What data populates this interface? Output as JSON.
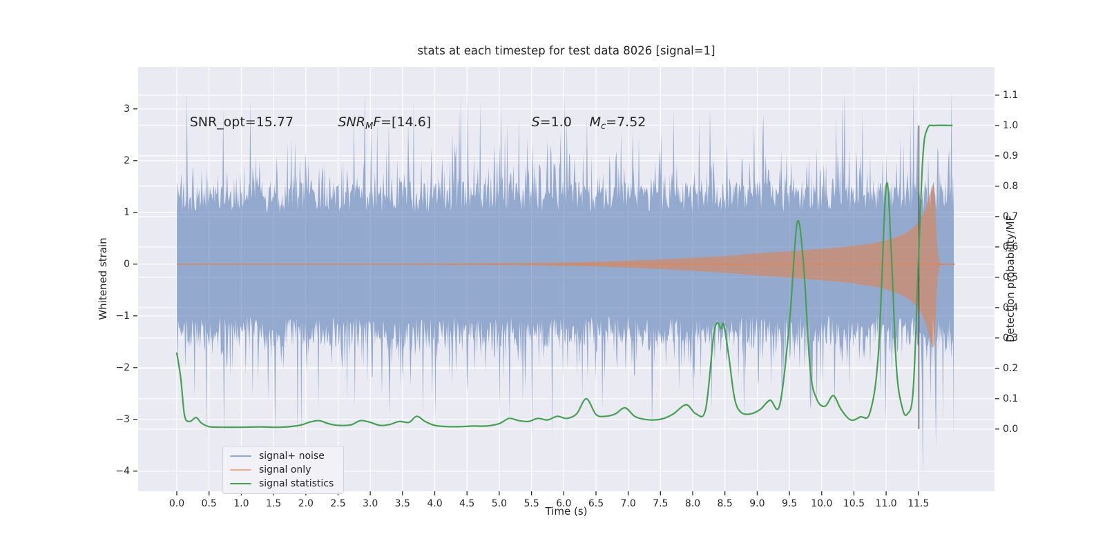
{
  "chart_data": {
    "type": "line",
    "title": "stats at each timestep for test data 8026 [signal=1]",
    "xlabel": "Time (s)",
    "ylabel_left": "Whitened strain",
    "ylabel_right": "Detection probability/MF",
    "xlim": [
      -0.6,
      12.68
    ],
    "ylim_left": [
      -4.39,
      3.81
    ],
    "ylim_right": [
      -0.205,
      1.193
    ],
    "grid": "on",
    "legend_position": "lower left",
    "style": {
      "plot_bg": "#EAEAF2",
      "grid_color": "#FFFFFF",
      "text_color": "#262626",
      "tick_color": "#262626"
    },
    "x_ticks": [
      {
        "v": 0,
        "label": "0.0"
      },
      {
        "v": 0.5,
        "label": "0.5"
      },
      {
        "v": 1,
        "label": "1.0"
      },
      {
        "v": 1.5,
        "label": "1.5"
      },
      {
        "v": 2,
        "label": "2.0"
      },
      {
        "v": 2.5,
        "label": "2.5"
      },
      {
        "v": 3,
        "label": "3.0"
      },
      {
        "v": 3.5,
        "label": "3.5"
      },
      {
        "v": 4,
        "label": "4.0"
      },
      {
        "v": 4.5,
        "label": "4.5"
      },
      {
        "v": 5,
        "label": "5.0"
      },
      {
        "v": 5.5,
        "label": "5.5"
      },
      {
        "v": 6,
        "label": "6.0"
      },
      {
        "v": 6.5,
        "label": "6.5"
      },
      {
        "v": 7,
        "label": "7.0"
      },
      {
        "v": 7.5,
        "label": "7.5"
      },
      {
        "v": 8,
        "label": "8.0"
      },
      {
        "v": 8.5,
        "label": "8.5"
      },
      {
        "v": 9,
        "label": "9.0"
      },
      {
        "v": 9.5,
        "label": "9.5"
      },
      {
        "v": 10,
        "label": "10.0"
      },
      {
        "v": 10.5,
        "label": "10.5"
      },
      {
        "v": 11,
        "label": "11.0"
      },
      {
        "v": 11.5,
        "label": "11.5"
      }
    ],
    "y_ticks_left": [
      {
        "v": 3,
        "label": "3"
      },
      {
        "v": 2,
        "label": "2"
      },
      {
        "v": 1,
        "label": "1"
      },
      {
        "v": 0,
        "label": "0"
      },
      {
        "v": -1,
        "label": "−1"
      },
      {
        "v": -2,
        "label": "−2"
      },
      {
        "v": -3,
        "label": "−3"
      },
      {
        "v": -4,
        "label": "−4"
      }
    ],
    "y_ticks_right": [
      {
        "v": 1.1,
        "label": "1.1"
      },
      {
        "v": 1.0,
        "label": "1.0"
      },
      {
        "v": 0.9,
        "label": "0.9"
      },
      {
        "v": 0.8,
        "label": "0.8"
      },
      {
        "v": 0.7,
        "label": "0.7"
      },
      {
        "v": 0.6,
        "label": "0.6"
      },
      {
        "v": 0.5,
        "label": "0.5"
      },
      {
        "v": 0.4,
        "label": "0.4"
      },
      {
        "v": 0.3,
        "label": "0.3"
      },
      {
        "v": 0.2,
        "label": "0.2"
      },
      {
        "v": 0.1,
        "label": "0.1"
      },
      {
        "v": 0.0,
        "label": "0.0"
      }
    ],
    "annotations": [
      {
        "x": 0.2,
        "y": 2.75,
        "segments": [
          {
            "text": "SNR_opt=15.77"
          }
        ]
      },
      {
        "x": 2.5,
        "y": 2.75,
        "segments": [
          {
            "text": "SNR",
            "italic": true
          },
          {
            "text": "M",
            "italic": true,
            "sub": true
          },
          {
            "text": "F",
            "italic": true
          },
          {
            "text": "=[14.6]"
          }
        ]
      },
      {
        "x": 5.5,
        "y": 2.75,
        "segments": [
          {
            "text": "S",
            "italic": true
          },
          {
            "text": "=1.0"
          }
        ]
      },
      {
        "x": 6.4,
        "y": 2.75,
        "segments": [
          {
            "text": "M",
            "italic": true
          },
          {
            "text": "c",
            "italic": true,
            "sub": true
          },
          {
            "text": "=7.52"
          }
        ]
      }
    ],
    "series": [
      {
        "name": "signal+ noise",
        "type": "noise_band",
        "axis": "left",
        "color": "#4C72B0",
        "opacity": 0.55,
        "noise": {
          "t_start": 0,
          "t_end": 12.06,
          "dt": 0.012,
          "core_min": 1.0,
          "core_var": 0.6,
          "spike_prob": 0.38,
          "spike_scale": 0.5,
          "spike_cap": 3.35,
          "seed": 8026
        },
        "spikes": [
          [
            0.72,
            3.0
          ],
          [
            1.14,
            3.17
          ],
          [
            2.75,
            2.92
          ],
          [
            4.7,
            3.17
          ],
          [
            5.3,
            2.86
          ],
          [
            6.05,
            2.85
          ],
          [
            7.7,
            2.97
          ],
          [
            9.1,
            2.9
          ],
          [
            10.32,
            3.22
          ],
          [
            11.42,
            3.52
          ],
          [
            2.2,
            -2.78
          ],
          [
            3.3,
            -2.92
          ],
          [
            5.0,
            -2.82
          ],
          [
            6.6,
            -2.78
          ],
          [
            8.0,
            -2.88
          ],
          [
            8.8,
            -2.97
          ],
          [
            10.2,
            -2.82
          ],
          [
            11.57,
            -4.12
          ],
          [
            11.77,
            -3.55
          ],
          [
            11.88,
            -3.0
          ]
        ]
      },
      {
        "name": "signal only",
        "type": "chirp_envelope",
        "axis": "left",
        "color": "#DD8452",
        "opacity": 0.6,
        "baseline": 0,
        "t_end": 12.07,
        "envelope": [
          [
            0,
            0.009
          ],
          [
            3,
            0.01
          ],
          [
            4.5,
            0.014
          ],
          [
            5.5,
            0.022
          ],
          [
            6.2,
            0.035
          ],
          [
            6.8,
            0.055
          ],
          [
            7.4,
            0.085
          ],
          [
            8.0,
            0.12
          ],
          [
            8.6,
            0.165
          ],
          [
            9.0,
            0.21
          ],
          [
            9.4,
            0.24
          ],
          [
            9.8,
            0.275
          ],
          [
            10.2,
            0.315
          ],
          [
            10.6,
            0.37
          ],
          [
            10.9,
            0.43
          ],
          [
            11.15,
            0.52
          ],
          [
            11.35,
            0.64
          ],
          [
            11.5,
            0.82
          ],
          [
            11.6,
            1.05
          ],
          [
            11.68,
            1.35
          ],
          [
            11.73,
            1.52
          ],
          [
            11.755,
            1.3
          ],
          [
            11.775,
            0.75
          ],
          [
            11.79,
            0.4
          ],
          [
            11.81,
            0.15
          ],
          [
            11.835,
            0.035
          ],
          [
            11.87,
            0.012
          ],
          [
            12.07,
            0.01
          ]
        ]
      },
      {
        "name": "signal statistics",
        "type": "line",
        "axis": "right",
        "color": "#44A152",
        "width": 2.2,
        "points": [
          [
            0,
            0.25
          ],
          [
            0.06,
            0.17
          ],
          [
            0.12,
            0.045
          ],
          [
            0.2,
            0.025
          ],
          [
            0.3,
            0.038
          ],
          [
            0.38,
            0.02
          ],
          [
            0.5,
            0.008
          ],
          [
            0.7,
            0.006
          ],
          [
            1.0,
            0.006
          ],
          [
            1.3,
            0.007
          ],
          [
            1.6,
            0.006
          ],
          [
            1.9,
            0.012
          ],
          [
            2.05,
            0.022
          ],
          [
            2.2,
            0.028
          ],
          [
            2.35,
            0.018
          ],
          [
            2.5,
            0.012
          ],
          [
            2.7,
            0.014
          ],
          [
            2.85,
            0.028
          ],
          [
            3.0,
            0.022
          ],
          [
            3.15,
            0.012
          ],
          [
            3.3,
            0.015
          ],
          [
            3.45,
            0.025
          ],
          [
            3.6,
            0.022
          ],
          [
            3.72,
            0.042
          ],
          [
            3.85,
            0.025
          ],
          [
            4.0,
            0.012
          ],
          [
            4.2,
            0.008
          ],
          [
            4.4,
            0.008
          ],
          [
            4.6,
            0.01
          ],
          [
            4.8,
            0.01
          ],
          [
            5.0,
            0.018
          ],
          [
            5.15,
            0.035
          ],
          [
            5.3,
            0.028
          ],
          [
            5.45,
            0.025
          ],
          [
            5.6,
            0.035
          ],
          [
            5.75,
            0.03
          ],
          [
            5.9,
            0.042
          ],
          [
            6.05,
            0.035
          ],
          [
            6.2,
            0.05
          ],
          [
            6.35,
            0.1
          ],
          [
            6.5,
            0.048
          ],
          [
            6.65,
            0.042
          ],
          [
            6.8,
            0.05
          ],
          [
            6.95,
            0.07
          ],
          [
            7.1,
            0.042
          ],
          [
            7.25,
            0.032
          ],
          [
            7.4,
            0.03
          ],
          [
            7.55,
            0.035
          ],
          [
            7.7,
            0.05
          ],
          [
            7.9,
            0.08
          ],
          [
            8.05,
            0.05
          ],
          [
            8.2,
            0.065
          ],
          [
            8.32,
            0.3
          ],
          [
            8.38,
            0.35
          ],
          [
            8.44,
            0.33
          ],
          [
            8.48,
            0.345
          ],
          [
            8.56,
            0.24
          ],
          [
            8.65,
            0.1
          ],
          [
            8.75,
            0.055
          ],
          [
            8.9,
            0.05
          ],
          [
            9.05,
            0.065
          ],
          [
            9.2,
            0.095
          ],
          [
            9.35,
            0.08
          ],
          [
            9.5,
            0.35
          ],
          [
            9.62,
            0.68
          ],
          [
            9.72,
            0.54
          ],
          [
            9.82,
            0.2
          ],
          [
            9.92,
            0.1
          ],
          [
            10.05,
            0.075
          ],
          [
            10.18,
            0.11
          ],
          [
            10.3,
            0.065
          ],
          [
            10.45,
            0.03
          ],
          [
            10.6,
            0.04
          ],
          [
            10.75,
            0.055
          ],
          [
            10.88,
            0.25
          ],
          [
            11.0,
            0.8
          ],
          [
            11.08,
            0.58
          ],
          [
            11.16,
            0.2
          ],
          [
            11.25,
            0.07
          ],
          [
            11.33,
            0.05
          ],
          [
            11.42,
            0.13
          ],
          [
            11.5,
            0.55
          ],
          [
            11.57,
            0.9
          ],
          [
            11.64,
            0.99
          ],
          [
            11.75,
            1.0
          ],
          [
            12.02,
            1.0
          ]
        ]
      }
    ],
    "marker": {
      "type": "vline",
      "x": 11.507,
      "from": 0,
      "to": 1.0,
      "axis": "right",
      "color": "#3A3A3A"
    },
    "legend": {
      "items": [
        {
          "label": "signal+ noise",
          "color": "#8FA6CE"
        },
        {
          "label": "signal only",
          "color": "#E8AD90"
        },
        {
          "label": "signal statistics",
          "color": "#44A152"
        }
      ]
    }
  }
}
